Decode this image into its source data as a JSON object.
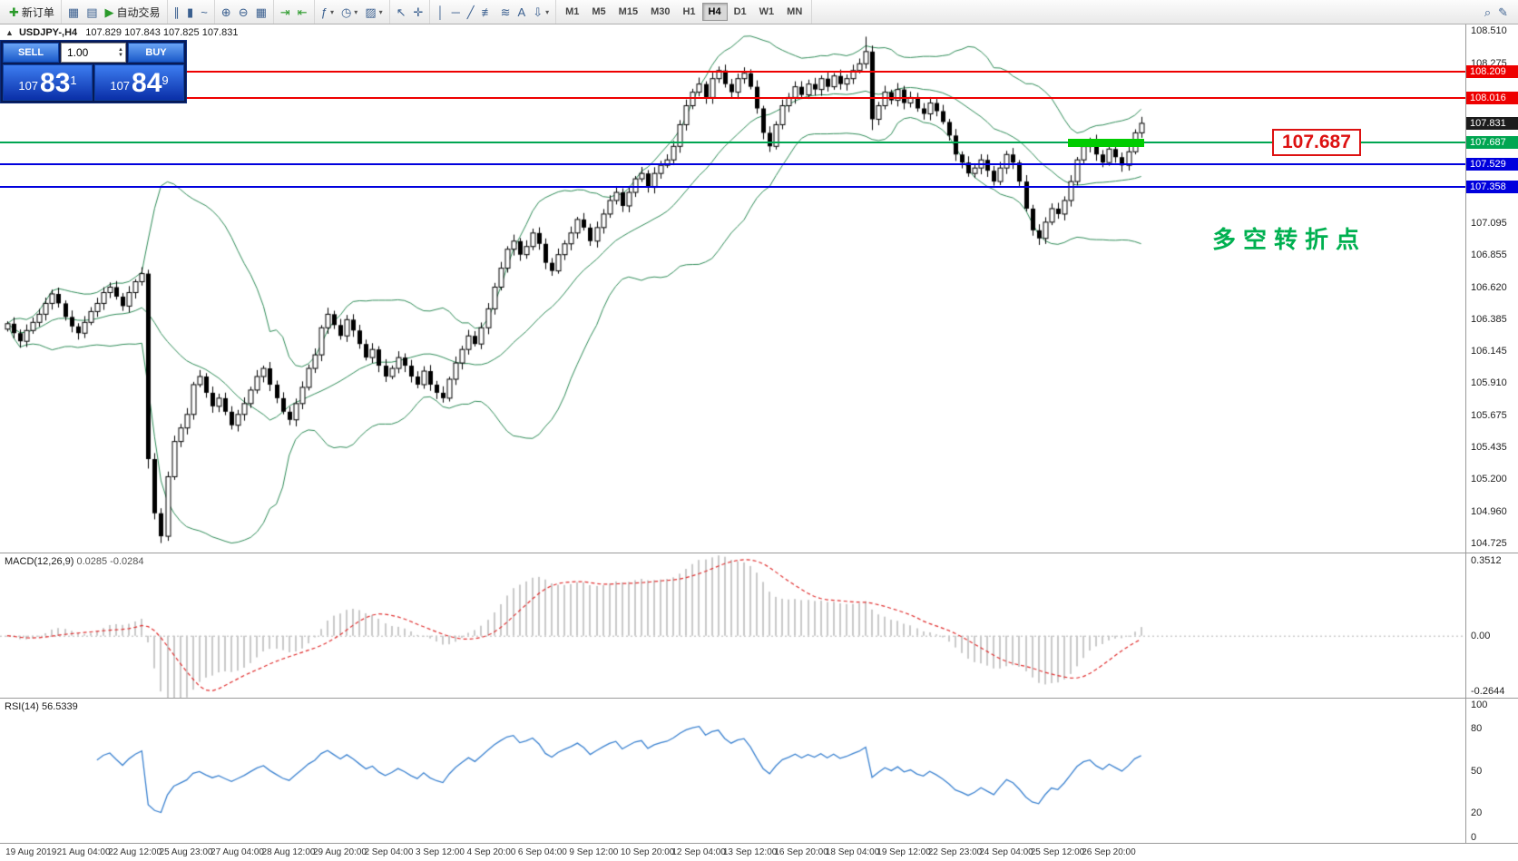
{
  "toolbar": {
    "groups": [
      [
        {
          "button": "new-order-button",
          "icon": "new-order-icon",
          "glyph": "✚",
          "color": "#2a9a2a",
          "label": "新订单"
        }
      ],
      [
        {
          "button": "new-chart-button",
          "icon": "new-chart-icon",
          "glyph": "▦"
        },
        {
          "button": "profiles-button",
          "icon": "profiles-icon",
          "glyph": "▤"
        },
        {
          "button": "autotrading-button",
          "icon": "play-icon",
          "glyph": "▶",
          "color": "#2a9a2a",
          "label": "自动交易"
        }
      ],
      [
        {
          "button": "bar-chart-button",
          "icon": "bar-chart-icon",
          "glyph": "∥"
        },
        {
          "button": "candlestick-button",
          "icon": "candlestick-icon",
          "glyph": "▮"
        },
        {
          "button": "line-chart-button",
          "icon": "line-chart-icon",
          "glyph": "~"
        }
      ],
      [
        {
          "button": "zoom-in-button",
          "icon": "zoom-in-icon",
          "glyph": "⊕"
        },
        {
          "button": "zoom-out-button",
          "icon": "zoom-out-icon",
          "glyph": "⊖"
        },
        {
          "button": "tile-windows-button",
          "icon": "tile-windows-icon",
          "glyph": "▦"
        }
      ],
      [
        {
          "button": "autoscroll-button",
          "icon": "autoscroll-icon",
          "glyph": "⇥",
          "color": "#2a9a2a"
        },
        {
          "button": "chart-shift-button",
          "icon": "chart-shift-icon",
          "glyph": "⇤",
          "color": "#2a9a2a"
        }
      ],
      [
        {
          "button": "indicators-button",
          "icon": "indicators-icon",
          "glyph": "ƒ",
          "arrow": true
        },
        {
          "button": "periods-button",
          "icon": "clock-icon",
          "glyph": "◷",
          "arrow": true
        },
        {
          "button": "templates-button",
          "icon": "templates-icon",
          "glyph": "▨",
          "arrow": true
        }
      ],
      [
        {
          "button": "cursor-button",
          "icon": "cursor-icon",
          "glyph": "↖"
        },
        {
          "button": "crosshair-button",
          "icon": "crosshair-icon",
          "glyph": "✛"
        }
      ],
      [
        {
          "button": "vertical-line-button",
          "icon": "vertical-line-icon",
          "glyph": "│"
        },
        {
          "button": "horizontal-line-button",
          "icon": "horizontal-line-icon",
          "glyph": "─"
        },
        {
          "button": "trendline-button",
          "icon": "trendline-icon",
          "glyph": "╱"
        },
        {
          "button": "fibonacci-button",
          "icon": "fibonacci-icon",
          "glyph": "≢"
        },
        {
          "button": "channels-button",
          "icon": "channels-icon",
          "glyph": "≋"
        },
        {
          "button": "text-button",
          "icon": "text-icon",
          "glyph": "A"
        },
        {
          "button": "arrows-button",
          "icon": "arrows-icon",
          "glyph": "⇩",
          "arrow": true
        }
      ]
    ],
    "timeframes": [
      "M1",
      "M5",
      "M15",
      "M30",
      "H1",
      "H4",
      "D1",
      "W1",
      "MN"
    ],
    "active_timeframe": "H4",
    "right_icons": [
      {
        "button": "search-button",
        "icon": "search-icon",
        "glyph": "⌕"
      },
      {
        "button": "notes-button",
        "icon": "pencil-icon",
        "glyph": "✎"
      }
    ]
  },
  "chart": {
    "marker": "▲",
    "title": "USDJPY-,H4",
    "ohlc": "107.829 107.843 107.825 107.831"
  },
  "trade_panel": {
    "sell_label": "SELL",
    "buy_label": "BUY",
    "volume": "1.00",
    "sell_price": {
      "base": "107",
      "big": "83",
      "sup": "1"
    },
    "buy_price": {
      "base": "107",
      "big": "84",
      "sup": "9"
    }
  },
  "levels": [
    {
      "label": "108.209",
      "price": 108.209,
      "color": "#ee0000",
      "width": 2
    },
    {
      "label": "108.016",
      "price": 108.016,
      "color": "#ee0000",
      "width": 2
    },
    {
      "label": "107.687",
      "price": 107.687,
      "color": "#00a651",
      "width": 2
    },
    {
      "label": "107.529",
      "price": 107.529,
      "color": "#0000dd",
      "width": 2
    },
    {
      "label": "107.358",
      "price": 107.358,
      "color": "#0000dd",
      "width": 2
    }
  ],
  "current_price_tag": {
    "label": "107.831",
    "price": 107.831,
    "bg": "#1c1c1c"
  },
  "green_segment": {
    "price": 107.687,
    "from_index": 166,
    "to_index": 177,
    "color": "#00cc00",
    "thickness": 9
  },
  "price_callout": {
    "text": "107.687",
    "color": "#dd1111"
  },
  "annotation": {
    "text": "多空转折点",
    "color": "#00b050",
    "price": 107.0
  },
  "y_axis": {
    "ticks": [
      "108.510",
      "108.275",
      "107.095",
      "106.855",
      "106.620",
      "106.385",
      "106.145",
      "105.910",
      "105.675",
      "105.435",
      "105.200",
      "104.960",
      "104.725"
    ]
  },
  "macd": {
    "label": "MACD(12,26,9)",
    "values": "0.0285 -0.0284",
    "axis_max": "0.3512",
    "axis_zero": "0.00",
    "axis_min": "-0.2644",
    "range": [
      -0.2644,
      0.3512
    ]
  },
  "rsi": {
    "label": "RSI(14)",
    "value": "56.5339",
    "axis": [
      "100",
      "80",
      "50",
      "20",
      "0"
    ]
  },
  "time_axis": {
    "labels": [
      "19 Aug 2019",
      "21 Aug 04:00",
      "22 Aug 12:00",
      "25 Aug 23:00",
      "27 Aug 04:00",
      "28 Aug 12:00",
      "29 Aug 20:00",
      "2 Sep 04:00",
      "3 Sep 12:00",
      "4 Sep 20:00",
      "6 Sep 04:00",
      "9 Sep 12:00",
      "10 Sep 20:00",
      "12 Sep 04:00",
      "13 Sep 12:00",
      "16 Sep 20:00",
      "18 Sep 04:00",
      "19 Sep 12:00",
      "22 Sep 23:00",
      "24 Sep 04:00",
      "25 Sep 12:00",
      "26 Sep 20:00"
    ]
  },
  "chart_data": {
    "type": "candlestick",
    "symbol": "USDJPY",
    "timeframe": "H4",
    "price_range": [
      104.66,
      108.56
    ],
    "closes": [
      106.35,
      106.28,
      106.22,
      106.3,
      106.36,
      106.42,
      106.5,
      106.57,
      106.5,
      106.4,
      106.33,
      106.28,
      106.36,
      106.44,
      106.5,
      106.58,
      106.62,
      106.55,
      106.48,
      106.58,
      106.66,
      106.72,
      105.35,
      104.95,
      104.78,
      105.22,
      105.48,
      105.58,
      105.68,
      105.9,
      105.96,
      105.84,
      105.74,
      105.8,
      105.7,
      105.6,
      105.68,
      105.76,
      105.86,
      105.96,
      106.02,
      105.9,
      105.8,
      105.7,
      105.64,
      105.76,
      105.88,
      106.02,
      106.12,
      106.32,
      106.42,
      106.34,
      106.26,
      106.38,
      106.3,
      106.2,
      106.1,
      106.16,
      106.04,
      105.96,
      106.02,
      106.1,
      106.04,
      105.96,
      105.9,
      106.0,
      105.9,
      105.84,
      105.8,
      105.94,
      106.06,
      106.16,
      106.26,
      106.2,
      106.32,
      106.46,
      106.62,
      106.76,
      106.9,
      106.96,
      106.86,
      106.92,
      107.02,
      106.94,
      106.8,
      106.74,
      106.86,
      106.94,
      107.02,
      107.12,
      107.06,
      106.96,
      107.06,
      107.16,
      107.26,
      107.32,
      107.22,
      107.32,
      107.42,
      107.46,
      107.36,
      107.46,
      107.52,
      107.56,
      107.66,
      107.82,
      107.96,
      108.06,
      108.12,
      108.02,
      108.16,
      108.22,
      108.12,
      108.06,
      108.16,
      108.2,
      108.1,
      107.94,
      107.76,
      107.66,
      107.82,
      107.96,
      108.02,
      108.1,
      108.04,
      108.12,
      108.08,
      108.16,
      108.1,
      108.18,
      108.12,
      108.16,
      108.22,
      108.27,
      108.36,
      107.86,
      107.96,
      108.06,
      108.0,
      108.08,
      107.98,
      108.02,
      107.94,
      107.9,
      107.98,
      107.92,
      107.84,
      107.74,
      107.6,
      107.54,
      107.46,
      107.5,
      107.56,
      107.48,
      107.4,
      107.5,
      107.6,
      107.54,
      107.4,
      107.2,
      107.04,
      106.98,
      107.1,
      107.2,
      107.16,
      107.26,
      107.4,
      107.56,
      107.66,
      107.7,
      107.6,
      107.54,
      107.64,
      107.58,
      107.52,
      107.62,
      107.76,
      107.83
    ],
    "wick_overrides": {
      "22": {
        "low": 105.28
      },
      "24": {
        "low": 104.73
      },
      "134": {
        "high": 108.47
      },
      "135": {
        "low": 107.78
      }
    },
    "bollinger": {
      "period": 20,
      "deviation": 2,
      "color": "#2e8b57"
    }
  }
}
